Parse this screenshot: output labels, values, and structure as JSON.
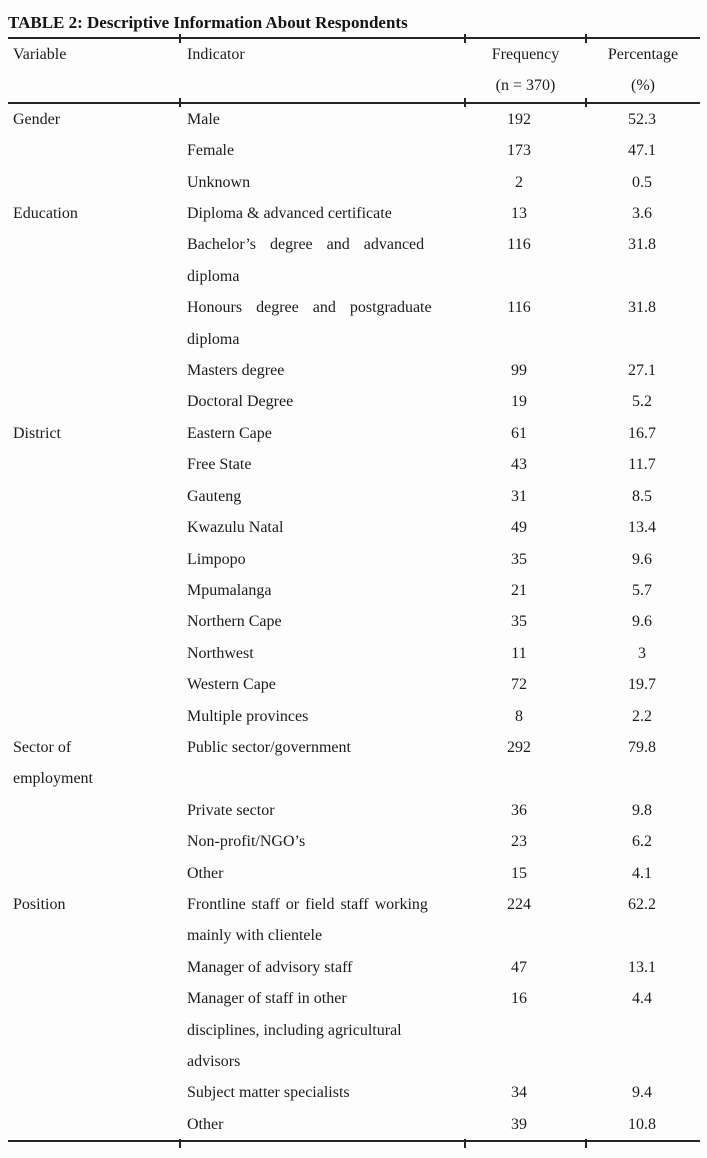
{
  "title": "TABLE 2: Descriptive Information About Respondents",
  "table": {
    "headers": {
      "variable": "Variable",
      "indicator": "Indicator",
      "frequency_line1": "Frequency",
      "frequency_line2": "(n = 370)",
      "percentage_line1": "Percentage",
      "percentage_line2": "(%)"
    },
    "groups": [
      {
        "variable_lines": [
          "Gender"
        ],
        "rows": [
          {
            "indicator_lines": [
              "Male"
            ],
            "frequency": "192",
            "percentage": "52.3"
          },
          {
            "indicator_lines": [
              "Female"
            ],
            "frequency": "173",
            "percentage": "47.1"
          },
          {
            "indicator_lines": [
              "Unknown"
            ],
            "frequency": "2",
            "percentage": "0.5"
          }
        ]
      },
      {
        "variable_lines": [
          "Education"
        ],
        "rows": [
          {
            "indicator_lines": [
              "Diploma & advanced certificate"
            ],
            "frequency": "13",
            "percentage": "3.6"
          },
          {
            "indicator_lines": [
              "Bachelor’s degree and advanced",
              "diploma"
            ],
            "stretch": [
              0
            ],
            "frequency": "116",
            "percentage": "31.8"
          },
          {
            "indicator_lines": [
              "Honours degree and postgraduate",
              "diploma"
            ],
            "stretch": [
              0
            ],
            "frequency": "116",
            "percentage": "31.8"
          },
          {
            "indicator_lines": [
              "Masters degree"
            ],
            "frequency": "99",
            "percentage": "27.1"
          },
          {
            "indicator_lines": [
              "Doctoral Degree"
            ],
            "frequency": "19",
            "percentage": "5.2"
          }
        ]
      },
      {
        "variable_lines": [
          "District"
        ],
        "rows": [
          {
            "indicator_lines": [
              "Eastern Cape"
            ],
            "frequency": "61",
            "percentage": "16.7"
          },
          {
            "indicator_lines": [
              "Free State"
            ],
            "frequency": "43",
            "percentage": "11.7"
          },
          {
            "indicator_lines": [
              "Gauteng"
            ],
            "frequency": "31",
            "percentage": "8.5"
          },
          {
            "indicator_lines": [
              "Kwazulu Natal"
            ],
            "frequency": "49",
            "percentage": "13.4"
          },
          {
            "indicator_lines": [
              "Limpopo"
            ],
            "frequency": "35",
            "percentage": "9.6"
          },
          {
            "indicator_lines": [
              "Mpumalanga"
            ],
            "frequency": "21",
            "percentage": "5.7"
          },
          {
            "indicator_lines": [
              "Northern Cape"
            ],
            "frequency": "35",
            "percentage": "9.6"
          },
          {
            "indicator_lines": [
              "Northwest"
            ],
            "frequency": "11",
            "percentage": "3"
          },
          {
            "indicator_lines": [
              "Western Cape"
            ],
            "frequency": "72",
            "percentage": "19.7"
          },
          {
            "indicator_lines": [
              "Multiple provinces"
            ],
            "frequency": "8",
            "percentage": "2.2"
          }
        ]
      },
      {
        "variable_lines": [
          "Sector of",
          "employment"
        ],
        "rows": [
          {
            "indicator_lines": [
              "Public sector/government"
            ],
            "frequency": "292",
            "percentage": "79.8"
          },
          {
            "indicator_lines": [
              "Private sector"
            ],
            "frequency": "36",
            "percentage": "9.8"
          },
          {
            "indicator_lines": [
              "Non-profit/NGO’s"
            ],
            "frequency": "23",
            "percentage": "6.2"
          },
          {
            "indicator_lines": [
              "Other"
            ],
            "frequency": "15",
            "percentage": "4.1"
          }
        ]
      },
      {
        "variable_lines": [
          "Position"
        ],
        "rows": [
          {
            "indicator_lines": [
              "Frontline staff or field staff working",
              "mainly with clientele"
            ],
            "stretch_sm": [
              0
            ],
            "frequency": "224",
            "percentage": "62.2"
          },
          {
            "indicator_lines": [
              "Manager of advisory staff"
            ],
            "frequency": "47",
            "percentage": "13.1"
          },
          {
            "indicator_lines": [
              "Manager of staff in other",
              "disciplines, including agricultural",
              "advisors"
            ],
            "frequency": "16",
            "percentage": "4.4"
          },
          {
            "indicator_lines": [
              "Subject matter specialists"
            ],
            "frequency": "34",
            "percentage": "9.4"
          },
          {
            "indicator_lines": [
              "Other"
            ],
            "frequency": "39",
            "percentage": "10.8"
          }
        ]
      }
    ]
  }
}
